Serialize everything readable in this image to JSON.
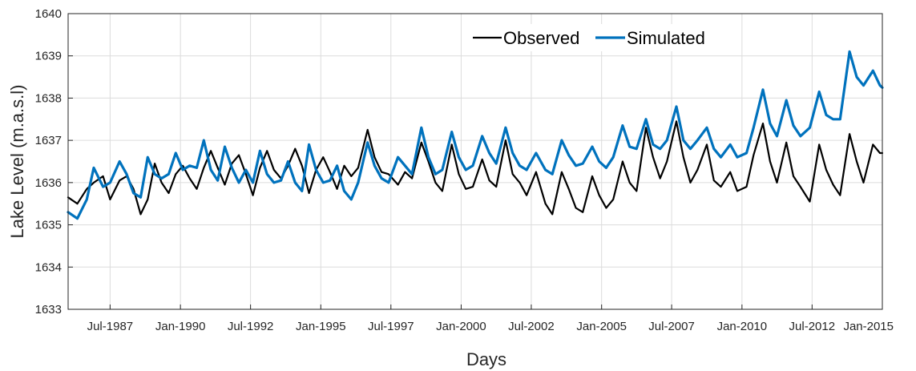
{
  "chart_data": {
    "type": "line",
    "title": "",
    "xlabel": "Days",
    "ylabel": "Lake Level (m.a.s.l)",
    "ylim": [
      1633,
      1640
    ],
    "xlim": [
      "1986-01-01",
      "2015-01-01"
    ],
    "grid": true,
    "legend_position": "top-right",
    "y_ticks": [
      "1633",
      "1634",
      "1635",
      "1636",
      "1637",
      "1638",
      "1639",
      "1640"
    ],
    "x_ticks": [
      {
        "label": "Jul-1987",
        "date": "1987-07-01"
      },
      {
        "label": "Jan-1990",
        "date": "1990-01-01"
      },
      {
        "label": "Jul-1992",
        "date": "1992-07-01"
      },
      {
        "label": "Jan-1995",
        "date": "1995-01-01"
      },
      {
        "label": "Jul-1997",
        "date": "1997-07-01"
      },
      {
        "label": "Jan-2000",
        "date": "2000-01-01"
      },
      {
        "label": "Jul-2002",
        "date": "2002-07-01"
      },
      {
        "label": "Jan-2005",
        "date": "2005-01-01"
      },
      {
        "label": "Jul-2007",
        "date": "2007-07-01"
      },
      {
        "label": "Jan-2010",
        "date": "2010-01-01"
      },
      {
        "label": "Jul-2012",
        "date": "2012-07-01"
      },
      {
        "label": "Jan-2015",
        "date": "2015-01-01"
      }
    ],
    "series": [
      {
        "name": "Observed",
        "color": "#000000",
        "points": [
          [
            "1986-01-01",
            1635.65
          ],
          [
            "1986-05-01",
            1635.5
          ],
          [
            "1986-09-01",
            1635.85
          ],
          [
            "1986-12-01",
            1636.0
          ],
          [
            "1987-04-01",
            1636.15
          ],
          [
            "1987-07-01",
            1635.6
          ],
          [
            "1987-11-01",
            1636.05
          ],
          [
            "1988-02-01",
            1636.15
          ],
          [
            "1988-05-01",
            1635.85
          ],
          [
            "1988-08-01",
            1635.25
          ],
          [
            "1988-11-01",
            1635.6
          ],
          [
            "1989-02-01",
            1636.45
          ],
          [
            "1989-05-01",
            1636.0
          ],
          [
            "1989-08-01",
            1635.75
          ],
          [
            "1989-11-01",
            1636.2
          ],
          [
            "1990-02-01",
            1636.4
          ],
          [
            "1990-05-01",
            1636.1
          ],
          [
            "1990-08-01",
            1635.85
          ],
          [
            "1990-11-01",
            1636.35
          ],
          [
            "1991-02-01",
            1636.75
          ],
          [
            "1991-05-01",
            1636.35
          ],
          [
            "1991-08-01",
            1635.95
          ],
          [
            "1991-11-01",
            1636.45
          ],
          [
            "1992-02-01",
            1636.65
          ],
          [
            "1992-05-01",
            1636.2
          ],
          [
            "1992-08-01",
            1635.7
          ],
          [
            "1992-11-01",
            1636.35
          ],
          [
            "1993-02-01",
            1636.75
          ],
          [
            "1993-05-01",
            1636.3
          ],
          [
            "1993-08-01",
            1636.1
          ],
          [
            "1993-11-01",
            1636.4
          ],
          [
            "1994-02-01",
            1636.8
          ],
          [
            "1994-05-01",
            1636.4
          ],
          [
            "1994-08-01",
            1635.75
          ],
          [
            "1994-11-01",
            1636.3
          ],
          [
            "1995-02-01",
            1636.6
          ],
          [
            "1995-05-01",
            1636.25
          ],
          [
            "1995-08-01",
            1635.85
          ],
          [
            "1995-11-01",
            1636.4
          ],
          [
            "1996-02-01",
            1636.15
          ],
          [
            "1996-05-01",
            1636.35
          ],
          [
            "1996-09-01",
            1637.25
          ],
          [
            "1996-12-01",
            1636.6
          ],
          [
            "1997-03-01",
            1636.25
          ],
          [
            "1997-06-01",
            1636.2
          ],
          [
            "1997-10-01",
            1635.95
          ],
          [
            "1998-01-01",
            1636.25
          ],
          [
            "1998-04-01",
            1636.1
          ],
          [
            "1998-08-01",
            1636.95
          ],
          [
            "1998-11-01",
            1636.5
          ],
          [
            "1999-02-01",
            1636.0
          ],
          [
            "1999-05-01",
            1635.8
          ],
          [
            "1999-09-01",
            1636.9
          ],
          [
            "1999-12-01",
            1636.2
          ],
          [
            "2000-03-01",
            1635.85
          ],
          [
            "2000-06-01",
            1635.9
          ],
          [
            "2000-10-01",
            1636.55
          ],
          [
            "2001-01-01",
            1636.05
          ],
          [
            "2001-04-01",
            1635.9
          ],
          [
            "2001-08-01",
            1637.0
          ],
          [
            "2001-11-01",
            1636.2
          ],
          [
            "2002-02-01",
            1636.0
          ],
          [
            "2002-05-01",
            1635.7
          ],
          [
            "2002-09-01",
            1636.25
          ],
          [
            "2003-01-01",
            1635.5
          ],
          [
            "2003-04-01",
            1635.25
          ],
          [
            "2003-08-01",
            1636.25
          ],
          [
            "2003-11-01",
            1635.85
          ],
          [
            "2004-02-01",
            1635.4
          ],
          [
            "2004-05-01",
            1635.3
          ],
          [
            "2004-09-01",
            1636.15
          ],
          [
            "2004-12-01",
            1635.7
          ],
          [
            "2005-03-01",
            1635.4
          ],
          [
            "2005-06-01",
            1635.6
          ],
          [
            "2005-10-01",
            1636.5
          ],
          [
            "2006-01-01",
            1636.0
          ],
          [
            "2006-04-01",
            1635.8
          ],
          [
            "2006-08-01",
            1637.3
          ],
          [
            "2006-11-01",
            1636.6
          ],
          [
            "2007-02-01",
            1636.1
          ],
          [
            "2007-05-01",
            1636.5
          ],
          [
            "2007-09-01",
            1637.45
          ],
          [
            "2007-12-01",
            1636.6
          ],
          [
            "2008-03-01",
            1636.0
          ],
          [
            "2008-06-01",
            1636.3
          ],
          [
            "2008-10-01",
            1636.9
          ],
          [
            "2009-01-01",
            1636.05
          ],
          [
            "2009-04-01",
            1635.9
          ],
          [
            "2009-08-01",
            1636.25
          ],
          [
            "2009-11-01",
            1635.8
          ],
          [
            "2010-03-01",
            1635.9
          ],
          [
            "2010-06-01",
            1636.65
          ],
          [
            "2010-10-01",
            1637.4
          ],
          [
            "2011-01-01",
            1636.5
          ],
          [
            "2011-04-01",
            1636.0
          ],
          [
            "2011-08-01",
            1636.95
          ],
          [
            "2011-11-01",
            1636.15
          ],
          [
            "2012-02-01",
            1635.9
          ],
          [
            "2012-06-01",
            1635.55
          ],
          [
            "2012-10-01",
            1636.9
          ],
          [
            "2013-01-01",
            1636.3
          ],
          [
            "2013-04-01",
            1635.95
          ],
          [
            "2013-07-01",
            1635.7
          ],
          [
            "2013-11-01",
            1637.15
          ],
          [
            "2014-02-01",
            1636.5
          ],
          [
            "2014-05-01",
            1636.0
          ],
          [
            "2014-09-01",
            1636.9
          ],
          [
            "2014-12-01",
            1636.7
          ],
          [
            "2015-01-01",
            1636.7
          ]
        ]
      },
      {
        "name": "Simulated",
        "color": "#0072BD",
        "points": [
          [
            "1986-01-01",
            1635.3
          ],
          [
            "1986-05-01",
            1635.15
          ],
          [
            "1986-09-01",
            1635.6
          ],
          [
            "1986-12-01",
            1636.35
          ],
          [
            "1987-04-01",
            1635.9
          ],
          [
            "1987-07-01",
            1636.0
          ],
          [
            "1987-11-01",
            1636.5
          ],
          [
            "1988-02-01",
            1636.2
          ],
          [
            "1988-05-01",
            1635.75
          ],
          [
            "1988-08-01",
            1635.65
          ],
          [
            "1988-11-01",
            1636.6
          ],
          [
            "1989-02-01",
            1636.2
          ],
          [
            "1989-05-01",
            1636.1
          ],
          [
            "1989-08-01",
            1636.2
          ],
          [
            "1989-11-01",
            1636.7
          ],
          [
            "1990-02-01",
            1636.3
          ],
          [
            "1990-05-01",
            1636.4
          ],
          [
            "1990-08-01",
            1636.35
          ],
          [
            "1990-11-01",
            1637.0
          ],
          [
            "1991-02-01",
            1636.3
          ],
          [
            "1991-05-01",
            1636.05
          ],
          [
            "1991-08-01",
            1636.85
          ],
          [
            "1991-11-01",
            1636.35
          ],
          [
            "1992-02-01",
            1636.0
          ],
          [
            "1992-05-01",
            1636.3
          ],
          [
            "1992-08-01",
            1636.0
          ],
          [
            "1992-11-01",
            1636.75
          ],
          [
            "1993-02-01",
            1636.2
          ],
          [
            "1993-05-01",
            1636.0
          ],
          [
            "1993-08-01",
            1636.05
          ],
          [
            "1993-11-01",
            1636.5
          ],
          [
            "1994-02-01",
            1636.0
          ],
          [
            "1994-05-01",
            1635.8
          ],
          [
            "1994-08-01",
            1636.9
          ],
          [
            "1994-11-01",
            1636.3
          ],
          [
            "1995-02-01",
            1636.0
          ],
          [
            "1995-05-01",
            1636.05
          ],
          [
            "1995-08-01",
            1636.4
          ],
          [
            "1995-11-01",
            1635.8
          ],
          [
            "1996-02-01",
            1635.6
          ],
          [
            "1996-05-01",
            1636.0
          ],
          [
            "1996-09-01",
            1636.95
          ],
          [
            "1996-12-01",
            1636.4
          ],
          [
            "1997-03-01",
            1636.1
          ],
          [
            "1997-06-01",
            1636.0
          ],
          [
            "1997-10-01",
            1636.6
          ],
          [
            "1998-01-01",
            1636.4
          ],
          [
            "1998-04-01",
            1636.2
          ],
          [
            "1998-08-01",
            1637.3
          ],
          [
            "1998-11-01",
            1636.6
          ],
          [
            "1999-02-01",
            1636.2
          ],
          [
            "1999-05-01",
            1636.3
          ],
          [
            "1999-09-01",
            1637.2
          ],
          [
            "1999-12-01",
            1636.6
          ],
          [
            "2000-03-01",
            1636.3
          ],
          [
            "2000-06-01",
            1636.4
          ],
          [
            "2000-10-01",
            1637.1
          ],
          [
            "2001-01-01",
            1636.7
          ],
          [
            "2001-04-01",
            1636.45
          ],
          [
            "2001-08-01",
            1637.3
          ],
          [
            "2001-11-01",
            1636.7
          ],
          [
            "2002-02-01",
            1636.4
          ],
          [
            "2002-05-01",
            1636.3
          ],
          [
            "2002-09-01",
            1636.7
          ],
          [
            "2003-01-01",
            1636.3
          ],
          [
            "2003-04-01",
            1636.2
          ],
          [
            "2003-08-01",
            1637.0
          ],
          [
            "2003-11-01",
            1636.65
          ],
          [
            "2004-02-01",
            1636.4
          ],
          [
            "2004-05-01",
            1636.45
          ],
          [
            "2004-09-01",
            1636.85
          ],
          [
            "2004-12-01",
            1636.5
          ],
          [
            "2005-03-01",
            1636.35
          ],
          [
            "2005-06-01",
            1636.6
          ],
          [
            "2005-10-01",
            1637.35
          ],
          [
            "2006-01-01",
            1636.85
          ],
          [
            "2006-04-01",
            1636.8
          ],
          [
            "2006-08-01",
            1637.5
          ],
          [
            "2006-11-01",
            1636.9
          ],
          [
            "2007-02-01",
            1636.8
          ],
          [
            "2007-05-01",
            1637.0
          ],
          [
            "2007-09-01",
            1637.8
          ],
          [
            "2007-12-01",
            1637.0
          ],
          [
            "2008-03-01",
            1636.8
          ],
          [
            "2008-06-01",
            1637.0
          ],
          [
            "2008-10-01",
            1637.3
          ],
          [
            "2009-01-01",
            1636.8
          ],
          [
            "2009-04-01",
            1636.6
          ],
          [
            "2009-08-01",
            1636.9
          ],
          [
            "2009-11-01",
            1636.6
          ],
          [
            "2010-03-01",
            1636.7
          ],
          [
            "2010-06-01",
            1637.3
          ],
          [
            "2010-10-01",
            1638.2
          ],
          [
            "2011-01-01",
            1637.4
          ],
          [
            "2011-04-01",
            1637.1
          ],
          [
            "2011-08-01",
            1637.95
          ],
          [
            "2011-11-01",
            1637.35
          ],
          [
            "2012-02-01",
            1637.1
          ],
          [
            "2012-06-01",
            1637.3
          ],
          [
            "2012-10-01",
            1638.15
          ],
          [
            "2013-01-01",
            1637.6
          ],
          [
            "2013-04-01",
            1637.5
          ],
          [
            "2013-07-01",
            1637.5
          ],
          [
            "2013-11-01",
            1639.1
          ],
          [
            "2014-02-01",
            1638.5
          ],
          [
            "2014-05-01",
            1638.3
          ],
          [
            "2014-09-01",
            1638.65
          ],
          [
            "2014-12-01",
            1638.3
          ],
          [
            "2015-01-01",
            1638.25
          ]
        ]
      }
    ]
  }
}
